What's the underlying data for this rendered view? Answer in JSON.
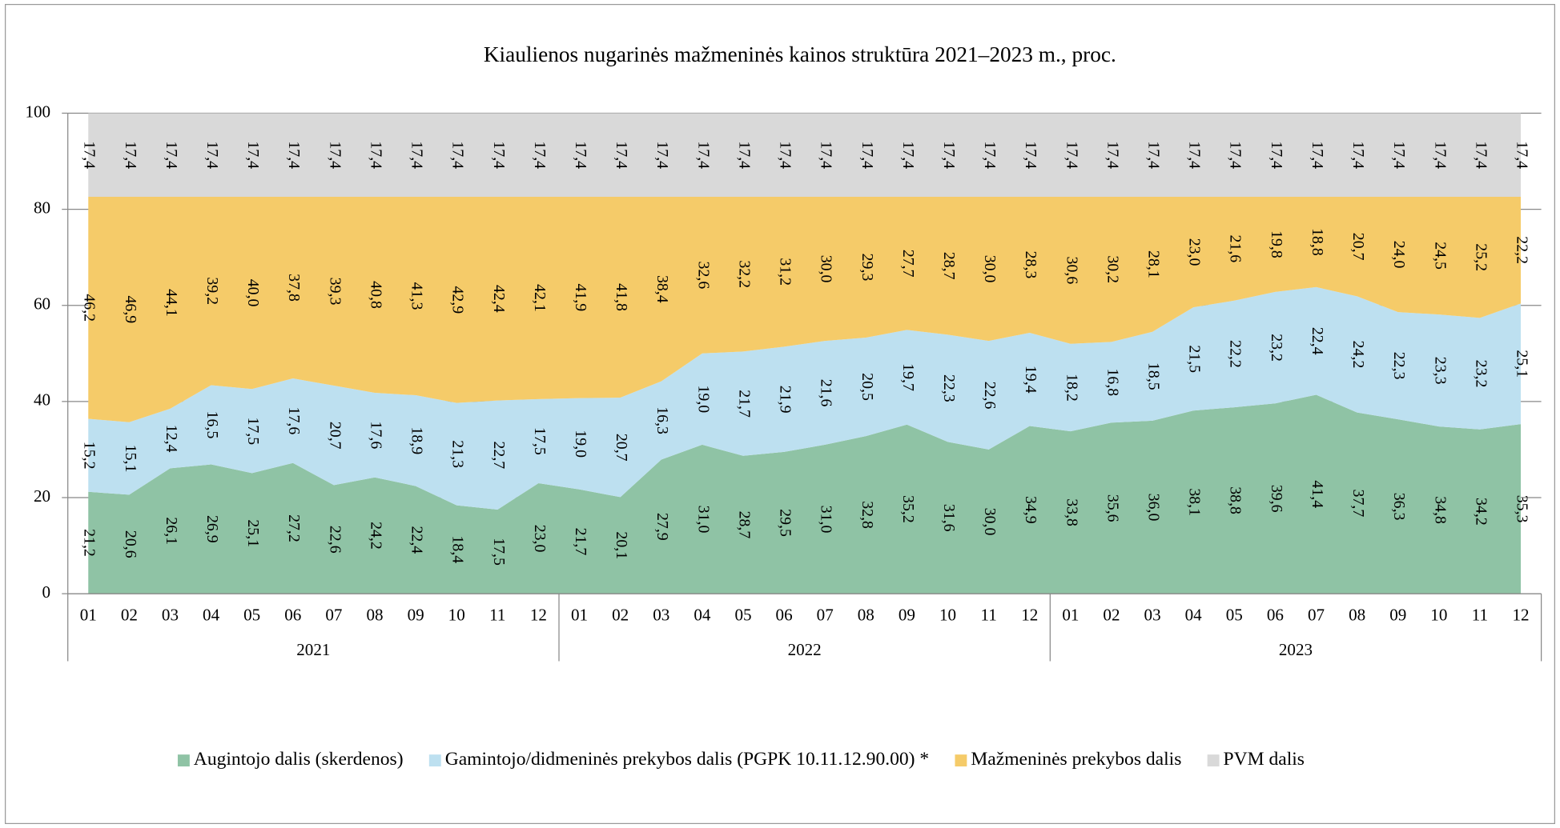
{
  "chart_data": {
    "type": "stacked_area",
    "title": "Kiaulienos nugarinės mažmeninės kainos struktūra 2021–2023 m., proc.",
    "categories": [
      "01",
      "02",
      "03",
      "04",
      "05",
      "06",
      "07",
      "08",
      "09",
      "10",
      "11",
      "12",
      "01",
      "02",
      "03",
      "04",
      "05",
      "06",
      "07",
      "08",
      "09",
      "10",
      "11",
      "12",
      "01",
      "02",
      "03",
      "04",
      "05",
      "06",
      "07",
      "08",
      "09",
      "10",
      "11",
      "12"
    ],
    "groups": [
      "2021",
      "2022",
      "2023"
    ],
    "ylim": [
      0,
      100
    ],
    "yticks": [
      0,
      20,
      40,
      60,
      80,
      100
    ],
    "grid": true,
    "legend": "bottom",
    "series": [
      {
        "name": "Augintojo dalis (skerdenos)",
        "color": "#8fc3a5",
        "values": [
          21.2,
          20.6,
          26.1,
          26.9,
          25.1,
          27.2,
          22.6,
          24.2,
          22.4,
          18.4,
          17.5,
          23.0,
          21.7,
          20.1,
          27.9,
          31.0,
          28.7,
          29.5,
          31.0,
          32.8,
          35.2,
          31.6,
          30.0,
          34.9,
          33.8,
          35.6,
          36.0,
          38.1,
          38.8,
          39.6,
          41.4,
          37.7,
          36.3,
          34.8,
          34.2,
          35.3
        ],
        "value_labels": [
          "21,2",
          "20,6",
          "26,1",
          "26,9",
          "25,1",
          "27,2",
          "22,6",
          "24,2",
          "22,4",
          "18,4",
          "17,5",
          "23,0",
          "21,7",
          "20,1",
          "27,9",
          "31,0",
          "28,7",
          "29,5",
          "31,0",
          "32,8",
          "35,2",
          "31,6",
          "30,0",
          "34,9",
          "33,8",
          "35,6",
          "36,0",
          "38,1",
          "38,8",
          "39,6",
          "41,4",
          "37,7",
          "36,3",
          "34,8",
          "34,2",
          "35,3"
        ]
      },
      {
        "name": "Gamintojo/didmeninės prekybos dalis (PGPK 10.11.12.90.00) *",
        "color": "#bde0f0",
        "values": [
          15.2,
          15.1,
          12.4,
          16.5,
          17.5,
          17.6,
          20.7,
          17.6,
          18.9,
          21.3,
          22.7,
          17.5,
          19.0,
          20.7,
          16.3,
          19.0,
          21.7,
          21.9,
          21.6,
          20.5,
          19.7,
          22.3,
          22.6,
          19.4,
          18.2,
          16.8,
          18.5,
          21.5,
          22.2,
          23.2,
          22.4,
          24.2,
          22.3,
          23.3,
          23.2,
          25.1
        ],
        "value_labels": [
          "15,2",
          "15,1",
          "12,4",
          "16,5",
          "17,5",
          "17,6",
          "20,7",
          "17,6",
          "18,9",
          "21,3",
          "22,7",
          "17,5",
          "19,0",
          "20,7",
          "16,3",
          "19,0",
          "21,7",
          "21,9",
          "21,6",
          "20,5",
          "19,7",
          "22,3",
          "22,6",
          "19,4",
          "18,2",
          "16,8",
          "18,5",
          "21,5",
          "22,2",
          "23,2",
          "22,4",
          "24,2",
          "22,3",
          "23,3",
          "23,2",
          "25,1"
        ]
      },
      {
        "name": "Mažmeninės prekybos dalis",
        "color": "#f5cb69",
        "values": [
          46.2,
          46.9,
          44.1,
          39.2,
          40.0,
          37.8,
          39.3,
          40.8,
          41.3,
          42.9,
          42.4,
          42.1,
          41.9,
          41.8,
          38.4,
          32.6,
          32.2,
          31.2,
          30.0,
          29.3,
          27.7,
          28.7,
          30.0,
          28.3,
          30.6,
          30.2,
          28.1,
          23.0,
          21.6,
          19.8,
          18.8,
          20.7,
          24.0,
          24.5,
          25.2,
          22.2
        ],
        "value_labels": [
          "46,2",
          "46,9",
          "44,1",
          "39,2",
          "40,0",
          "37,8",
          "39,3",
          "40,8",
          "41,3",
          "42,9",
          "42,4",
          "42,1",
          "41,9",
          "41,8",
          "38,4",
          "32,6",
          "32,2",
          "31,2",
          "30,0",
          "29,3",
          "27,7",
          "28,7",
          "30,0",
          "28,3",
          "30,6",
          "30,2",
          "28,1",
          "23,0",
          "21,6",
          "19,8",
          "18,8",
          "20,7",
          "24,0",
          "24,5",
          "25,2",
          "22,2"
        ]
      },
      {
        "name": "PVM dalis",
        "color": "#d9d9d9",
        "values": [
          17.4,
          17.4,
          17.4,
          17.4,
          17.4,
          17.4,
          17.4,
          17.4,
          17.4,
          17.4,
          17.4,
          17.4,
          17.4,
          17.4,
          17.4,
          17.4,
          17.4,
          17.4,
          17.4,
          17.4,
          17.4,
          17.4,
          17.4,
          17.4,
          17.4,
          17.4,
          17.4,
          17.4,
          17.4,
          17.4,
          17.4,
          17.4,
          17.4,
          17.4,
          17.4,
          17.4
        ],
        "value_labels": [
          "17,4",
          "17,4",
          "17,4",
          "17,4",
          "17,4",
          "17,4",
          "17,4",
          "17,4",
          "17,4",
          "17,4",
          "17,4",
          "17,4",
          "17,4",
          "17,4",
          "17,4",
          "17,4",
          "17,4",
          "17,4",
          "17,4",
          "17,4",
          "17,4",
          "17,4",
          "17,4",
          "17,4",
          "17,4",
          "17,4",
          "17,4",
          "17,4",
          "17,4",
          "17,4",
          "17,4",
          "17,4",
          "17,4",
          "17,4",
          "17,4",
          "17,4"
        ]
      }
    ]
  }
}
